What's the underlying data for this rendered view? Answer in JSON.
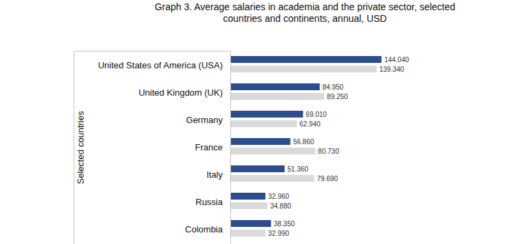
{
  "chart_data": {
    "type": "bar",
    "orientation": "horizontal",
    "title": "Graph 3. Average salaries in academia and the private sector, selected countries and continents, annual, USD",
    "y_label": "Selected countries",
    "categories": [
      "United States of America (USA)",
      "United Kingdom (UK)",
      "Germany",
      "France",
      "Italy",
      "Russia",
      "Colombia"
    ],
    "series": [
      {
        "color": "#2e4d8e",
        "values": [
          144040,
          84950,
          69010,
          56860,
          51360,
          32960,
          38350
        ],
        "value_labels": [
          "144.040",
          "84.950",
          "69.010",
          "56.860",
          "51.360",
          "32.960",
          "38.350"
        ]
      },
      {
        "color": "#dadada",
        "values": [
          139340,
          89250,
          62940,
          80730,
          79690,
          34880,
          32990
        ],
        "value_labels": [
          "139.340",
          "89.250",
          "62.940",
          "80.730",
          "79.690",
          "34.880",
          "32.990"
        ]
      }
    ],
    "xlim": [
      0,
      200000
    ],
    "data_labels": true,
    "tick_labels": "y",
    "grid": false
  }
}
